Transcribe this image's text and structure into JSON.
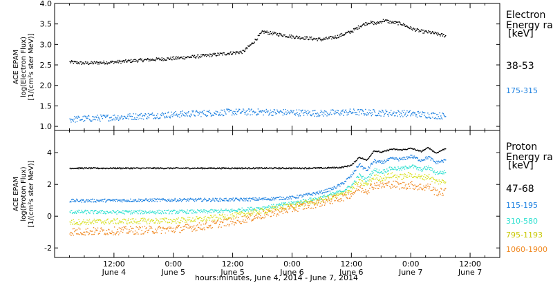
{
  "chart_data": {
    "type": "scatter",
    "xlabel": "hours:minutes, June  4, 2014 - June  7, 2014",
    "x_ticks": [
      {
        "hour": 12,
        "top": "12:00",
        "bottom": "June 4"
      },
      {
        "hour": 24,
        "top": "0:00",
        "bottom": "June 5"
      },
      {
        "hour": 36,
        "top": "12:00",
        "bottom": "June 5"
      },
      {
        "hour": 48,
        "top": "0:00",
        "bottom": "June 6"
      },
      {
        "hour": 60,
        "top": "12:00",
        "bottom": "June 6"
      },
      {
        "hour": 72,
        "top": "0:00",
        "bottom": "June 7"
      },
      {
        "hour": 84,
        "top": "12:00",
        "bottom": "June 7"
      }
    ],
    "panels": [
      {
        "name": "electron",
        "ylabel_lines": [
          "ACE EPAM",
          "log(Electron Flux)",
          "[1/(cm²s ster MeV)]"
        ],
        "ylim": [
          0.9,
          4.0
        ],
        "y_ticks": [
          "1.0",
          "1.5",
          "2.0",
          "2.5",
          "3.0",
          "3.5",
          "4.0"
        ],
        "legend_title_lines": [
          "Electron",
          "Energy ran",
          "[keV]"
        ],
        "series": [
          {
            "name": "38-53",
            "color": "#000000",
            "noise": 0.04,
            "x": [
              3,
              6,
              12,
              18,
              24,
              30,
              34,
              38,
              40,
              42,
              48,
              54,
              57,
              60,
              62,
              63.5,
              65,
              66.5,
              68,
              70,
              72,
              74,
              76,
              79
            ],
            "y": [
              2.58,
              2.55,
              2.58,
              2.63,
              2.67,
              2.73,
              2.78,
              2.83,
              3.05,
              3.32,
              3.2,
              3.13,
              3.2,
              3.33,
              3.48,
              3.55,
              3.52,
              3.6,
              3.55,
              3.52,
              3.4,
              3.33,
              3.3,
              3.22
            ]
          },
          {
            "name": "175-315",
            "color": "#1a7fe0",
            "noise": 0.08,
            "x": [
              3,
              12,
              24,
              30,
              36,
              42,
              48,
              54,
              60,
              66,
              72,
              79
            ],
            "y": [
              1.18,
              1.23,
              1.3,
              1.33,
              1.36,
              1.36,
              1.35,
              1.33,
              1.36,
              1.34,
              1.32,
              1.26
            ]
          }
        ]
      },
      {
        "name": "proton",
        "ylabel_lines": [
          "ACE EPAM",
          "log(Proton Flux)",
          "[1/(cm²s ster MeV)]"
        ],
        "ylim": [
          -2.6,
          5.4
        ],
        "y_ticks": [
          "-2",
          "0",
          "2",
          "4"
        ],
        "legend_title_lines": [
          "Proton",
          "Energy ran",
          "[keV]"
        ],
        "series": [
          {
            "name": "47-68",
            "color": "#000000",
            "noise": 0.04,
            "x": [
              3,
              12,
              24,
              36,
              48,
              54,
              58,
              60,
              61.5,
              63,
              64.5,
              66,
              68,
              70,
              72,
              74,
              75.5,
              77,
              79
            ],
            "y": [
              3.05,
              3.05,
              3.05,
              3.05,
              3.05,
              3.06,
              3.1,
              3.25,
              3.75,
              3.55,
              4.15,
              4.05,
              4.25,
              4.2,
              4.3,
              4.1,
              4.35,
              4.0,
              4.3
            ]
          },
          {
            "name": "115-195",
            "color": "#1a7fe0",
            "noise": 0.1,
            "x": [
              3,
              12,
              24,
              36,
              42,
              48,
              54,
              56,
              58,
              60,
              61.5,
              63,
              64.5,
              66,
              68,
              70,
              72,
              74,
              75.5,
              77,
              79
            ],
            "y": [
              1.0,
              1.02,
              1.05,
              1.07,
              1.1,
              1.2,
              1.55,
              1.75,
              2.05,
              2.6,
              3.3,
              2.9,
              3.5,
              3.4,
              3.65,
              3.6,
              3.8,
              3.55,
              3.75,
              3.4,
              3.55
            ]
          },
          {
            "name": "310-580",
            "color": "#2ee0d0",
            "noise": 0.12,
            "x": [
              3,
              12,
              24,
              30,
              36,
              42,
              48,
              54,
              58,
              60,
              61.5,
              63,
              64.5,
              66,
              68,
              70,
              72,
              74,
              75.5,
              77,
              79
            ],
            "y": [
              0.3,
              0.28,
              0.3,
              0.32,
              0.38,
              0.55,
              0.85,
              1.2,
              1.6,
              1.95,
              2.6,
              2.3,
              2.95,
              2.8,
              3.05,
              3.0,
              3.2,
              2.95,
              3.1,
              2.75,
              2.8
            ]
          },
          {
            "name": "795-1193",
            "color": "#d8e020",
            "noise": 0.18,
            "x": [
              3,
              12,
              24,
              30,
              36,
              42,
              48,
              54,
              58,
              60,
              61.5,
              63,
              64.5,
              66,
              68,
              70,
              72,
              74,
              75.5,
              77,
              79
            ],
            "y": [
              -0.35,
              -0.3,
              -0.25,
              -0.15,
              0.05,
              0.35,
              0.7,
              1.05,
              1.4,
              1.75,
              2.2,
              2.0,
              2.5,
              2.4,
              2.6,
              2.5,
              2.65,
              2.45,
              2.55,
              2.2,
              2.2
            ]
          },
          {
            "name": "1060-1900",
            "color": "#f08820",
            "noise": 0.25,
            "x": [
              3,
              12,
              24,
              30,
              36,
              42,
              48,
              54,
              58,
              60,
              61.5,
              63,
              64.5,
              66,
              68,
              70,
              72,
              74,
              75.5,
              77,
              79
            ],
            "y": [
              -0.95,
              -0.9,
              -0.8,
              -0.6,
              -0.3,
              0.1,
              0.5,
              0.9,
              1.2,
              1.45,
              1.8,
              1.65,
              2.0,
              1.95,
              2.05,
              1.95,
              2.0,
              1.85,
              1.9,
              1.55,
              1.55
            ]
          }
        ]
      }
    ]
  }
}
